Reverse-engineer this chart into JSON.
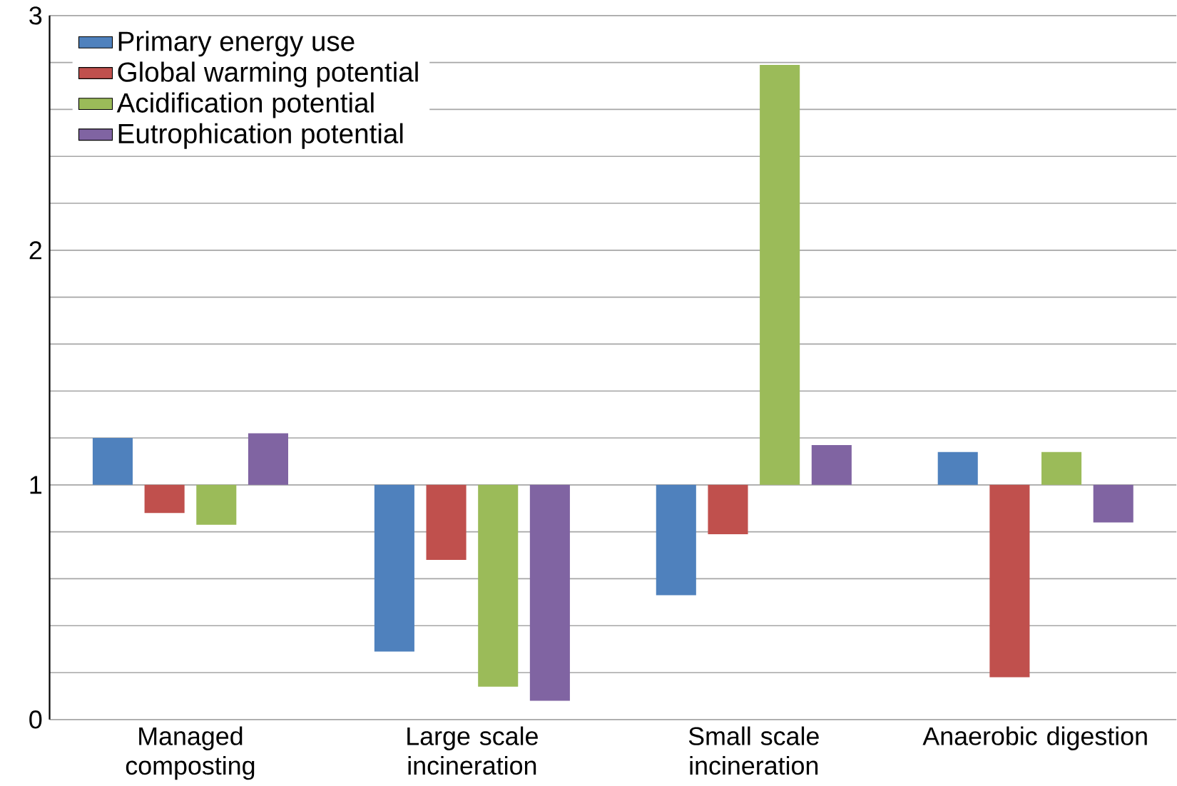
{
  "chart_data": {
    "type": "bar",
    "categories": [
      "Managed composting",
      "Large scale incineration",
      "Small scale incineration",
      "Anaerobic digestion"
    ],
    "series": [
      {
        "name": "Primary energy use",
        "color": "#4f81bd",
        "base": [
          1,
          1,
          1,
          1
        ],
        "values": [
          0.2,
          -0.71,
          -0.47,
          0.14
        ]
      },
      {
        "name": "Global warming potential",
        "color": "#c0504d",
        "base": [
          1,
          1,
          1,
          1
        ],
        "values": [
          -0.12,
          -0.32,
          -0.21,
          -0.82
        ]
      },
      {
        "name": "Acidification potential",
        "color": "#9bbb59",
        "base": [
          1,
          1,
          1,
          1
        ],
        "values": [
          -0.17,
          -0.86,
          1.79,
          0.14
        ]
      },
      {
        "name": "Eutrophication potential",
        "color": "#8064a2",
        "base": [
          1,
          1,
          1,
          1
        ],
        "values": [
          0.22,
          -0.92,
          0.17,
          -0.16
        ]
      }
    ],
    "ylim": [
      0,
      3
    ],
    "yticks": [
      0,
      {
        "value": 0.2,
        "label": null
      },
      {
        "value": 0.4,
        "label": null
      },
      {
        "value": 0.6,
        "label": null
      },
      {
        "value": 0.8,
        "label": null
      },
      1,
      {
        "value": 1.2,
        "label": null
      },
      {
        "value": 1.4,
        "label": null
      },
      {
        "value": 1.6,
        "label": null
      },
      {
        "value": 1.8,
        "label": null
      },
      2,
      {
        "value": 2.2,
        "label": null
      },
      {
        "value": 2.4,
        "label": null
      },
      {
        "value": 2.6,
        "label": null
      },
      {
        "value": 2.8,
        "label": null
      },
      3
    ],
    "grid": "y",
    "legend": "top left"
  }
}
